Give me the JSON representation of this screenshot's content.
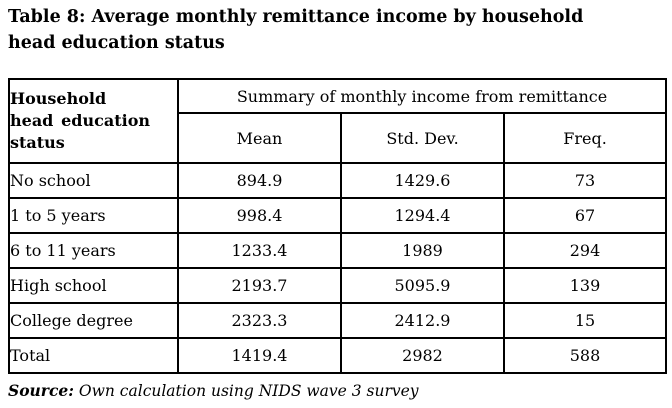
{
  "title": "Table 8: Average monthly remittance income by household head education status",
  "table": {
    "row_header": "Household head education status",
    "group_header": "Summary of monthly income from remittance",
    "columns": [
      "Mean",
      "Std. Dev.",
      "Freq."
    ],
    "rows": [
      {
        "label": "No school",
        "mean": "894.9",
        "std_dev": "1429.6",
        "freq": "73"
      },
      {
        "label": "1 to 5 years",
        "mean": "998.4",
        "std_dev": "1294.4",
        "freq": "67"
      },
      {
        "label": "6 to 11 years",
        "mean": "1233.4",
        "std_dev": "1989",
        "freq": "294"
      },
      {
        "label": "High school",
        "mean": "2193.7",
        "std_dev": "5095.9",
        "freq": "139"
      },
      {
        "label": "College degree",
        "mean": "2323.3",
        "std_dev": "2412.9",
        "freq": "15"
      },
      {
        "label": "Total",
        "mean": "1419.4",
        "std_dev": "2982",
        "freq": "588"
      }
    ]
  },
  "source": {
    "label": "Source:",
    "text": " Own calculation using NIDS wave 3 survey"
  }
}
